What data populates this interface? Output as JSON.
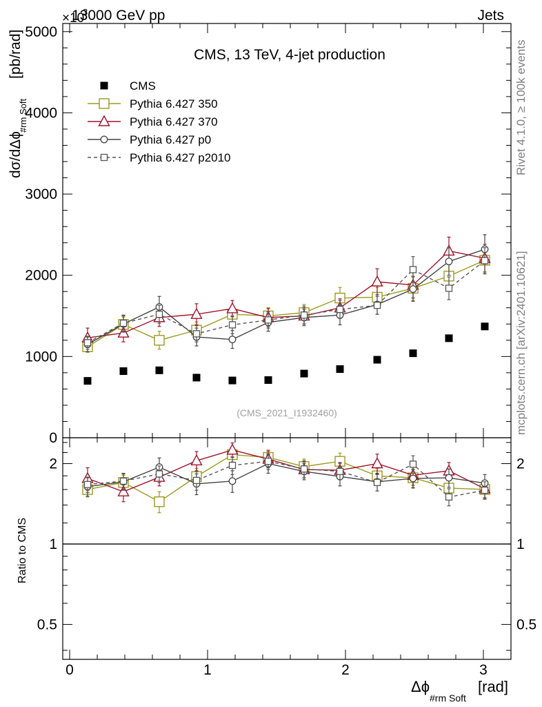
{
  "header": {
    "left_label": "13000 GeV pp",
    "right_label": "Jets",
    "exponent_label": "×10",
    "exponent_power": "3"
  },
  "side_labels": {
    "rivet": "Rivet 4.1.0, ≥ 100k events",
    "mcplots": "mcplots.cern.ch [arXiv:2401.10621]"
  },
  "chart_data": [
    {
      "type": "scatter",
      "title": "CMS, 13 TeV, 4-jet production",
      "analysis_tag": "(CMS_2021_I1932460)",
      "ylabel": "dσ/dΔϕ",
      "ylabel_sub": "#rm Soft",
      "ylabel_unit": "[pb/rad]",
      "xlim": [
        -0.05,
        3.2
      ],
      "ylim": [
        0,
        5100
      ],
      "y_ticks": [
        0,
        1000,
        2000,
        3000,
        4000,
        5000
      ],
      "y_tick_labels": [
        "0",
        "1000",
        "2000",
        "3000",
        "4000",
        "5000"
      ],
      "x": [
        0.13,
        0.39,
        0.65,
        0.92,
        1.18,
        1.44,
        1.7,
        1.96,
        2.23,
        2.49,
        2.75,
        3.01
      ],
      "series": [
        {
          "name": "CMS",
          "color": "#000000",
          "marker": "filled-square",
          "line": "none",
          "values": [
            700,
            820,
            830,
            740,
            705,
            710,
            790,
            845,
            960,
            1040,
            1225,
            1370
          ]
        },
        {
          "name": "Pythia 6.427 350",
          "color": "#9a9a1e",
          "marker": "open-square",
          "line": "solid",
          "values": [
            1120,
            1395,
            1200,
            1325,
            1520,
            1500,
            1540,
            1720,
            1730,
            1840,
            1990,
            2185
          ],
          "errors": [
            70,
            90,
            110,
            100,
            90,
            100,
            100,
            130,
            120,
            150,
            160,
            170
          ]
        },
        {
          "name": "Pythia 6.427 370",
          "color": "#a01028",
          "marker": "open-triangle",
          "line": "solid",
          "values": [
            1230,
            1290,
            1480,
            1520,
            1590,
            1480,
            1500,
            1600,
            1920,
            1880,
            2300,
            2210
          ],
          "errors": [
            120,
            110,
            110,
            130,
            100,
            110,
            100,
            110,
            160,
            160,
            170,
            170
          ]
        },
        {
          "name": "Pythia 6.427 p0",
          "color": "#444444",
          "marker": "open-circle",
          "line": "solid",
          "values": [
            1150,
            1400,
            1610,
            1240,
            1210,
            1420,
            1480,
            1510,
            1640,
            1830,
            2170,
            2320
          ],
          "errors": [
            90,
            100,
            130,
            110,
            110,
            110,
            100,
            120,
            120,
            150,
            170,
            180
          ]
        },
        {
          "name": "Pythia 6.427 p2010",
          "color": "#555555",
          "marker": "open-square-small",
          "line": "dashed",
          "values": [
            1170,
            1410,
            1520,
            1280,
            1390,
            1450,
            1510,
            1580,
            1630,
            2070,
            1840,
            2180
          ],
          "errors": [
            80,
            100,
            110,
            100,
            110,
            100,
            110,
            110,
            110,
            160,
            140,
            160
          ]
        }
      ]
    },
    {
      "type": "scatter",
      "ylabel": "Ratio to CMS",
      "xlabel": "Δϕ",
      "xlabel_sub": "#rm Soft",
      "xlabel_unit": "[rad]",
      "yscale": "log",
      "xlim": [
        -0.05,
        3.2
      ],
      "ylim": [
        0.37,
        2.5
      ],
      "x_ticks": [
        0,
        1,
        2,
        3
      ],
      "x_tick_labels": [
        "0",
        "1",
        "2",
        "3"
      ],
      "y_ticks": [
        0.5,
        1,
        2
      ],
      "y_tick_labels": [
        "0.5",
        "1",
        "2"
      ],
      "x": [
        0.13,
        0.39,
        0.65,
        0.92,
        1.18,
        1.44,
        1.7,
        1.96,
        2.23,
        2.49,
        2.75,
        3.01
      ],
      "series": [
        {
          "name": "Pythia 6.427 350",
          "color": "#9a9a1e",
          "marker": "open-square",
          "line": "solid",
          "values": [
            1.6,
            1.7,
            1.44,
            1.79,
            2.16,
            2.11,
            1.95,
            2.04,
            1.8,
            1.77,
            1.62,
            1.6
          ],
          "errors": [
            0.1,
            0.11,
            0.13,
            0.13,
            0.13,
            0.14,
            0.13,
            0.15,
            0.12,
            0.14,
            0.13,
            0.12
          ]
        },
        {
          "name": "Pythia 6.427 370",
          "color": "#a01028",
          "marker": "open-triangle",
          "line": "solid",
          "values": [
            1.76,
            1.57,
            1.78,
            2.05,
            2.25,
            2.08,
            1.9,
            1.89,
            2.0,
            1.81,
            1.88,
            1.61
          ],
          "errors": [
            0.17,
            0.13,
            0.13,
            0.17,
            0.14,
            0.15,
            0.13,
            0.13,
            0.17,
            0.15,
            0.14,
            0.12
          ]
        },
        {
          "name": "Pythia 6.427 p0",
          "color": "#444444",
          "marker": "open-circle",
          "line": "solid",
          "values": [
            1.64,
            1.71,
            1.94,
            1.68,
            1.72,
            2.0,
            1.87,
            1.79,
            1.71,
            1.76,
            1.77,
            1.69
          ],
          "errors": [
            0.13,
            0.12,
            0.16,
            0.15,
            0.16,
            0.16,
            0.13,
            0.14,
            0.13,
            0.14,
            0.14,
            0.13
          ]
        },
        {
          "name": "Pythia 6.427 p2010",
          "color": "#555555",
          "marker": "open-square-small",
          "line": "dashed",
          "values": [
            1.67,
            1.72,
            1.83,
            1.73,
            1.97,
            2.04,
            1.91,
            1.87,
            1.7,
            1.99,
            1.5,
            1.59
          ],
          "errors": [
            0.11,
            0.12,
            0.13,
            0.14,
            0.15,
            0.14,
            0.14,
            0.13,
            0.12,
            0.15,
            0.11,
            0.12
          ]
        }
      ]
    }
  ]
}
